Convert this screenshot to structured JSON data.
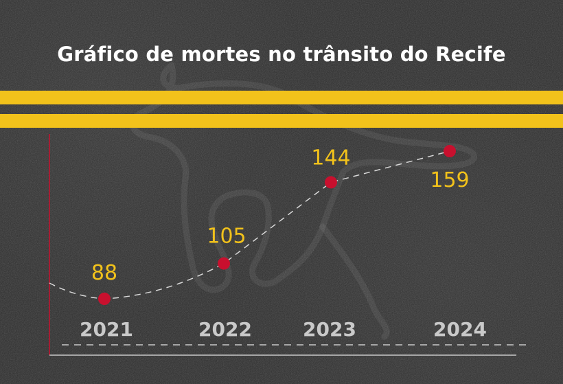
{
  "title": "Gráfico de mortes no trânsito do Recife",
  "colors": {
    "background": "#2c2c2c",
    "stripe": "#f2c21b",
    "marker": "#c8102e",
    "value_label": "#f2c21b",
    "year_label": "#c9c9c9",
    "line": "#d9d9d9"
  },
  "chart_data": {
    "type": "line",
    "title": "Gráfico de mortes no trânsito do Recife",
    "categories": [
      "2021",
      "2022",
      "2023",
      "2024"
    ],
    "values": [
      88,
      105,
      144,
      159
    ],
    "value_labels": [
      "88",
      "105",
      "144",
      "159"
    ],
    "xlabel": "",
    "ylabel": "",
    "line_style": "dashed",
    "grid": false,
    "legend": "none"
  }
}
